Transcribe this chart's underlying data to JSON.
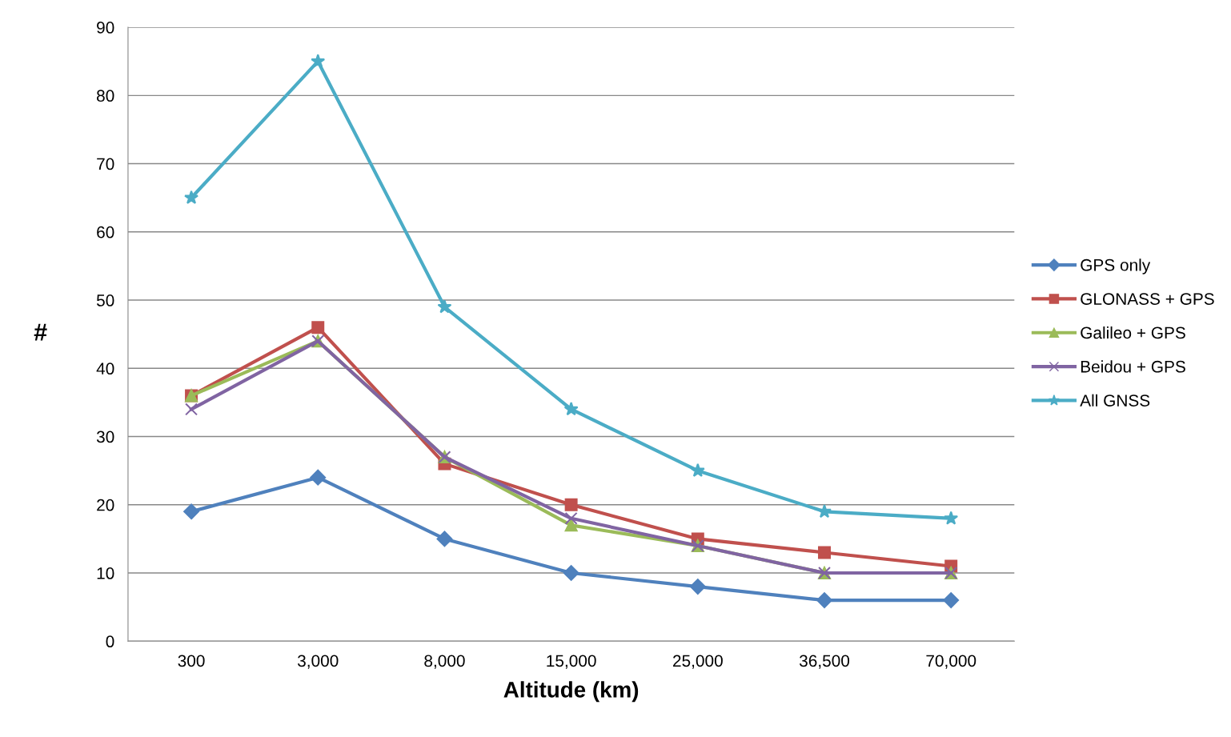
{
  "chart_data": {
    "type": "line",
    "xlabel": "Altitude (km)",
    "ylabel": "#",
    "categories": [
      "300",
      "3,000",
      "8,000",
      "15,000",
      "25,000",
      "36,500",
      "70,000"
    ],
    "series": [
      {
        "name": "GPS only",
        "color": "#4f81bd",
        "marker": "diamond",
        "values": [
          19,
          24,
          15,
          10,
          8,
          6,
          6
        ]
      },
      {
        "name": "GLONASS + GPS",
        "color": "#c0504d",
        "marker": "square",
        "values": [
          36,
          46,
          26,
          20,
          15,
          13,
          11
        ]
      },
      {
        "name": "Galileo + GPS",
        "color": "#9bbb59",
        "marker": "triangle",
        "values": [
          36,
          44,
          27,
          17,
          14,
          10,
          10
        ]
      },
      {
        "name": "Beidou + GPS",
        "color": "#8064a2",
        "marker": "cross",
        "values": [
          34,
          44,
          27,
          18,
          14,
          10,
          10
        ]
      },
      {
        "name": "All GNSS",
        "color": "#4bacc6",
        "marker": "star",
        "values": [
          65,
          85,
          49,
          34,
          25,
          19,
          18
        ]
      }
    ],
    "ylim": [
      0,
      90
    ],
    "yticks": [
      0,
      10,
      20,
      30,
      40,
      50,
      60,
      70,
      80,
      90
    ],
    "grid": "y",
    "legend": "right",
    "line_style": "solid"
  }
}
